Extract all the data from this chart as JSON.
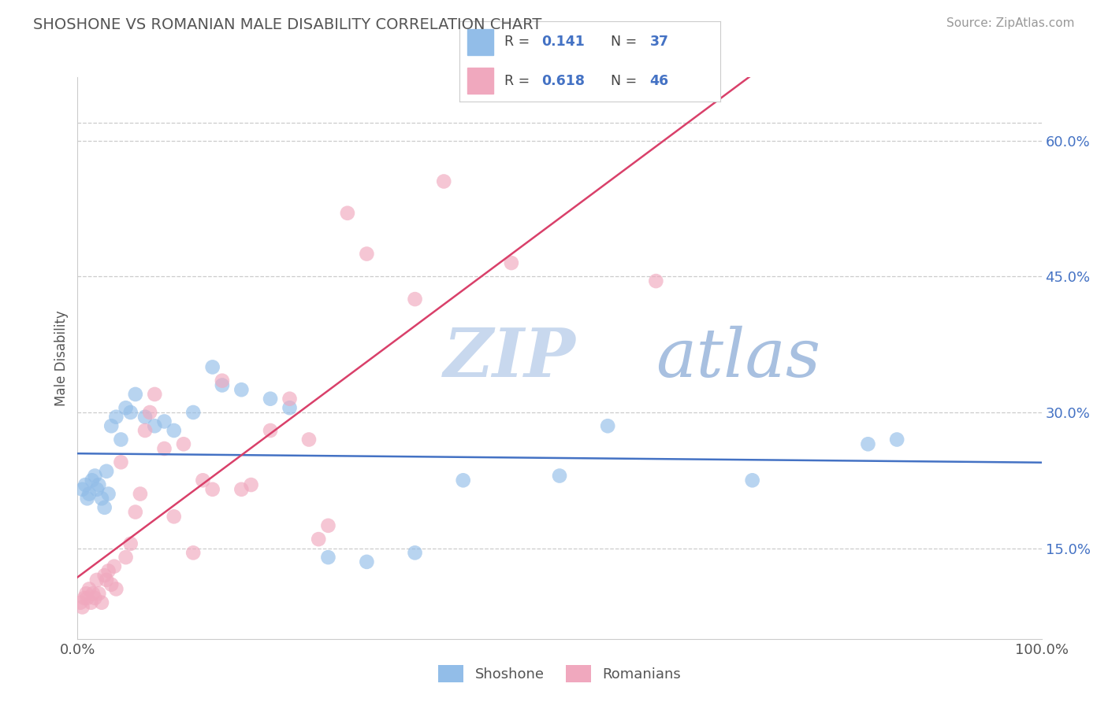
{
  "title": "SHOSHONE VS ROMANIAN MALE DISABILITY CORRELATION CHART",
  "source_text": "Source: ZipAtlas.com",
  "ylabel": "Male Disability",
  "xlim": [
    0.0,
    100.0
  ],
  "ylim": [
    5.0,
    67.0
  ],
  "y_ticks_right": [
    15.0,
    30.0,
    45.0,
    60.0
  ],
  "y_tick_labels_right": [
    "15.0%",
    "30.0%",
    "45.0%",
    "60.0%"
  ],
  "shoshone_color": "#92bde8",
  "romanian_color": "#f0a8be",
  "shoshone_line_color": "#4472c4",
  "romanian_line_color": "#d9406a",
  "shoshone_R": 0.141,
  "shoshone_N": 37,
  "romanian_R": 0.618,
  "romanian_N": 46,
  "watermark_zip": "ZIP",
  "watermark_atlas": "atlas",
  "background_color": "#ffffff",
  "grid_color": "#cccccc",
  "shoshone_x": [
    0.5,
    0.8,
    1.0,
    1.2,
    1.5,
    1.8,
    2.0,
    2.2,
    2.5,
    2.8,
    3.0,
    3.2,
    3.5,
    4.0,
    4.5,
    5.0,
    5.5,
    6.0,
    7.0,
    8.0,
    9.0,
    10.0,
    12.0,
    14.0,
    15.0,
    17.0,
    20.0,
    22.0,
    26.0,
    30.0,
    35.0,
    40.0,
    50.0,
    55.0,
    70.0,
    82.0,
    85.0
  ],
  "shoshone_y": [
    21.5,
    22.0,
    20.5,
    21.0,
    22.5,
    23.0,
    21.5,
    22.0,
    20.5,
    19.5,
    23.5,
    21.0,
    28.5,
    29.5,
    27.0,
    30.5,
    30.0,
    32.0,
    29.5,
    28.5,
    29.0,
    28.0,
    30.0,
    35.0,
    33.0,
    32.5,
    31.5,
    30.5,
    14.0,
    13.5,
    14.5,
    22.5,
    23.0,
    28.5,
    22.5,
    26.5,
    27.0
  ],
  "romanian_x": [
    0.3,
    0.5,
    0.7,
    0.9,
    1.0,
    1.2,
    1.4,
    1.6,
    1.8,
    2.0,
    2.2,
    2.5,
    2.8,
    3.0,
    3.2,
    3.5,
    3.8,
    4.0,
    4.5,
    5.0,
    5.5,
    6.0,
    6.5,
    7.0,
    7.5,
    8.0,
    9.0,
    10.0,
    11.0,
    12.0,
    13.0,
    14.0,
    15.0,
    17.0,
    18.0,
    20.0,
    22.0,
    24.0,
    25.0,
    26.0,
    28.0,
    30.0,
    35.0,
    38.0,
    45.0,
    60.0
  ],
  "romanian_y": [
    9.0,
    8.5,
    9.5,
    10.0,
    9.5,
    10.5,
    9.0,
    10.0,
    9.5,
    11.5,
    10.0,
    9.0,
    12.0,
    11.5,
    12.5,
    11.0,
    13.0,
    10.5,
    24.5,
    14.0,
    15.5,
    19.0,
    21.0,
    28.0,
    30.0,
    32.0,
    26.0,
    18.5,
    26.5,
    14.5,
    22.5,
    21.5,
    33.5,
    21.5,
    22.0,
    28.0,
    31.5,
    27.0,
    16.0,
    17.5,
    52.0,
    47.5,
    42.5,
    55.5,
    46.5,
    44.5
  ]
}
